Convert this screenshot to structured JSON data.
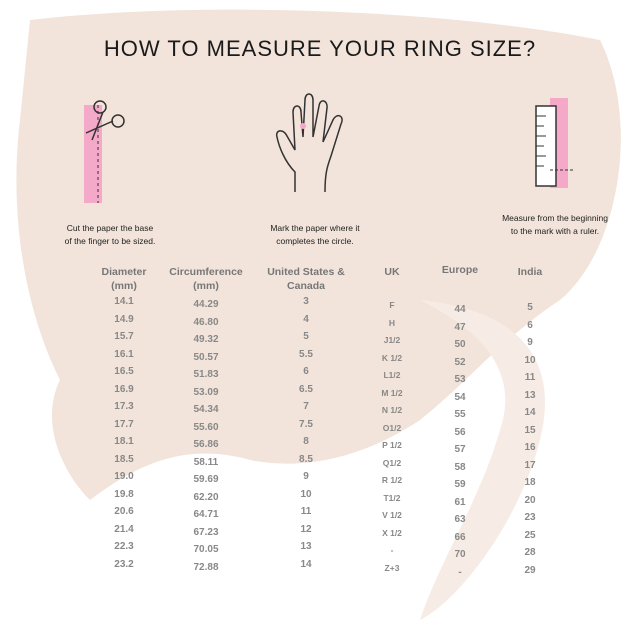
{
  "title": "HOW TO MEASURE YOUR RING SIZE?",
  "steps": [
    {
      "icon": "scissors-icon",
      "caption_1": "Cut the paper the base",
      "caption_2": "of the finger to be sized."
    },
    {
      "icon": "hand-icon",
      "caption_1": "Mark the paper where it",
      "caption_2": "completes the circle."
    },
    {
      "icon": "ruler-icon",
      "caption_1": "Measure from the beginning",
      "caption_2": "to the mark with a ruler."
    }
  ],
  "colors": {
    "accent_pink": "#f4a9c8",
    "background_brush": "#f2e4da",
    "text_gray": "#888888"
  },
  "table": {
    "headers": [
      {
        "line1": "Diameter",
        "line2": "(mm)"
      },
      {
        "line1": "Circumference",
        "line2": "(mm)"
      },
      {
        "line1": "United States &",
        "line2": "Canada"
      },
      {
        "line1": "UK",
        "line2": ""
      },
      {
        "line1": "Europe",
        "line2": ""
      },
      {
        "line1": "India",
        "line2": ""
      }
    ],
    "rows": [
      [
        "14.1",
        "44.29",
        "3",
        "F",
        "44",
        "5"
      ],
      [
        "14.9",
        "46.80",
        "4",
        "H",
        "47",
        "6"
      ],
      [
        "15.7",
        "49.32",
        "5",
        "J1/2",
        "50",
        "9"
      ],
      [
        "16.1",
        "50.57",
        "5.5",
        "K 1/2",
        "52",
        "10"
      ],
      [
        "16.5",
        "51.83",
        "6",
        "L1/2",
        "53",
        "11"
      ],
      [
        "16.9",
        "53.09",
        "6.5",
        "M 1/2",
        "54",
        "13"
      ],
      [
        "17.3",
        "54.34",
        "7",
        "N 1/2",
        "55",
        "14"
      ],
      [
        "17.7",
        "55.60",
        "7.5",
        "O1/2",
        "56",
        "15"
      ],
      [
        "18.1",
        "56.86",
        "8",
        "P 1/2",
        "57",
        "16"
      ],
      [
        "18.5",
        "58.11",
        "8.5",
        "Q1/2",
        "58",
        "17"
      ],
      [
        "19.0",
        "59.69",
        "9",
        "R 1/2",
        "59",
        "18"
      ],
      [
        "19.8",
        "62.20",
        "10",
        "T1/2",
        "61",
        "20"
      ],
      [
        "20.6",
        "64.71",
        "11",
        "V 1/2",
        "63",
        "23"
      ],
      [
        "21.4",
        "67.23",
        "12",
        "X 1/2",
        "66",
        "25"
      ],
      [
        "22.3",
        "70.05",
        "13",
        "-",
        "70",
        "28"
      ],
      [
        "23.2",
        "72.88",
        "14",
        "Z+3",
        "-",
        "29"
      ]
    ]
  }
}
